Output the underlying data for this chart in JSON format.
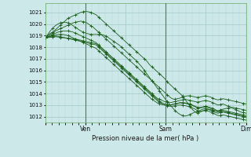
{
  "background_color": "#cce8e8",
  "grid_color_major": "#9ac0c0",
  "grid_color_minor": "#b8d8d8",
  "line_color": "#1a5e1a",
  "marker_color": "#1a5e1a",
  "ylabel_ticks": [
    1012,
    1013,
    1014,
    1015,
    1016,
    1017,
    1018,
    1019,
    1020,
    1021
  ],
  "ylim": [
    1011.5,
    1021.8
  ],
  "xlabel": "Pression niveau de la mer( hPa )",
  "xtick_labels": [
    "",
    "Ven",
    "",
    "Sam",
    "",
    "Dim"
  ],
  "xtick_positions": [
    0,
    48,
    96,
    144,
    192,
    240
  ],
  "total_points": 241,
  "series": [
    [
      1018.8,
      1019.0,
      1019.2,
      1019.3,
      1019.5,
      1019.7,
      1019.9,
      1020.1,
      1020.3,
      1020.5,
      1020.6,
      1020.7,
      1020.8,
      1020.9,
      1021.0,
      1021.05,
      1021.1,
      1021.05,
      1021.0,
      1020.9,
      1020.8,
      1020.6,
      1020.4,
      1020.2,
      1020.0,
      1019.8,
      1019.6,
      1019.4,
      1019.2,
      1019.0,
      1018.8,
      1018.6,
      1018.4,
      1018.2,
      1018.0,
      1017.8,
      1017.6,
      1017.4,
      1017.2,
      1017.0,
      1016.8,
      1016.5,
      1016.3,
      1016.1,
      1015.9,
      1015.7,
      1015.5,
      1015.3,
      1015.0,
      1014.8,
      1014.6,
      1014.4,
      1014.2,
      1014.0,
      1013.8,
      1013.5,
      1013.2,
      1012.9,
      1012.6,
      1012.4,
      1012.3,
      1012.4,
      1012.5,
      1012.6,
      1012.65,
      1012.6,
      1012.55,
      1012.5,
      1012.5,
      1012.6,
      1012.65,
      1012.7,
      1012.75,
      1012.8,
      1012.8,
      1012.75,
      1012.7,
      1012.65,
      1012.6,
      1012.55
    ],
    [
      1018.8,
      1019.0,
      1019.1,
      1019.2,
      1019.4,
      1019.5,
      1019.6,
      1019.7,
      1019.8,
      1019.9,
      1020.0,
      1020.1,
      1020.15,
      1020.2,
      1020.25,
      1020.2,
      1020.15,
      1020.0,
      1019.85,
      1019.7,
      1019.5,
      1019.3,
      1019.1,
      1018.9,
      1018.7,
      1018.5,
      1018.3,
      1018.1,
      1017.9,
      1017.7,
      1017.5,
      1017.3,
      1017.1,
      1016.9,
      1016.7,
      1016.5,
      1016.3,
      1016.1,
      1015.9,
      1015.7,
      1015.5,
      1015.3,
      1015.1,
      1014.9,
      1014.7,
      1014.5,
      1014.3,
      1014.1,
      1013.9,
      1013.7,
      1013.55,
      1013.5,
      1013.55,
      1013.6,
      1013.7,
      1013.75,
      1013.8,
      1013.8,
      1013.75,
      1013.7,
      1013.65,
      1013.7,
      1013.75,
      1013.8,
      1013.75,
      1013.7,
      1013.6,
      1013.5,
      1013.45,
      1013.5,
      1013.55,
      1013.5,
      1013.45,
      1013.4,
      1013.35,
      1013.3,
      1013.25,
      1013.2,
      1013.15,
      1013.1
    ],
    [
      1018.8,
      1018.9,
      1019.0,
      1019.1,
      1019.2,
      1019.3,
      1019.35,
      1019.4,
      1019.4,
      1019.4,
      1019.35,
      1019.3,
      1019.2,
      1019.1,
      1019.0,
      1018.9,
      1018.8,
      1018.7,
      1018.6,
      1018.5,
      1018.4,
      1018.2,
      1018.0,
      1017.8,
      1017.6,
      1017.4,
      1017.2,
      1017.0,
      1016.8,
      1016.6,
      1016.4,
      1016.2,
      1016.0,
      1015.8,
      1015.6,
      1015.4,
      1015.2,
      1015.0,
      1014.8,
      1014.6,
      1014.4,
      1014.2,
      1014.0,
      1013.8,
      1013.6,
      1013.5,
      1013.4,
      1013.3,
      1013.25,
      1013.2,
      1013.25,
      1013.3,
      1013.35,
      1013.4,
      1013.45,
      1013.5,
      1013.45,
      1013.4,
      1013.35,
      1013.3,
      1013.25,
      1013.3,
      1013.35,
      1013.4,
      1013.35,
      1013.3,
      1013.2,
      1013.1,
      1013.0,
      1013.05,
      1013.1,
      1013.0,
      1012.9,
      1012.8,
      1012.7,
      1012.6,
      1012.5,
      1012.4,
      1012.35,
      1012.3
    ],
    [
      1018.8,
      1018.9,
      1018.95,
      1019.0,
      1019.05,
      1019.1,
      1019.1,
      1019.1,
      1019.05,
      1019.0,
      1018.9,
      1018.8,
      1018.7,
      1018.6,
      1018.5,
      1018.4,
      1018.3,
      1018.2,
      1018.1,
      1018.0,
      1017.9,
      1017.7,
      1017.5,
      1017.3,
      1017.1,
      1016.9,
      1016.7,
      1016.5,
      1016.3,
      1016.1,
      1015.9,
      1015.7,
      1015.5,
      1015.3,
      1015.1,
      1014.9,
      1014.7,
      1014.5,
      1014.3,
      1014.1,
      1013.9,
      1013.7,
      1013.5,
      1013.35,
      1013.2,
      1013.1,
      1013.05,
      1013.0,
      1013.0,
      1013.0,
      1013.05,
      1013.1,
      1013.15,
      1013.2,
      1013.2,
      1013.2,
      1013.15,
      1013.1,
      1013.0,
      1012.9,
      1012.8,
      1012.8,
      1012.85,
      1012.9,
      1012.85,
      1012.8,
      1012.7,
      1012.6,
      1012.5,
      1012.5,
      1012.55,
      1012.5,
      1012.45,
      1012.4,
      1012.35,
      1012.3,
      1012.25,
      1012.2,
      1012.15,
      1012.1
    ],
    [
      1018.8,
      1018.85,
      1018.9,
      1018.92,
      1018.95,
      1018.95,
      1018.9,
      1018.85,
      1018.8,
      1018.75,
      1018.7,
      1018.65,
      1018.6,
      1018.55,
      1018.5,
      1018.45,
      1018.4,
      1018.35,
      1018.3,
      1018.25,
      1018.2,
      1018.0,
      1017.8,
      1017.6,
      1017.4,
      1017.2,
      1017.0,
      1016.8,
      1016.6,
      1016.4,
      1016.2,
      1016.0,
      1015.8,
      1015.6,
      1015.4,
      1015.2,
      1015.0,
      1014.8,
      1014.6,
      1014.4,
      1014.2,
      1014.0,
      1013.8,
      1013.6,
      1013.4,
      1013.25,
      1013.1,
      1013.0,
      1012.95,
      1012.9,
      1012.9,
      1012.95,
      1013.0,
      1013.0,
      1013.0,
      1012.95,
      1012.9,
      1012.85,
      1012.75,
      1012.65,
      1012.5,
      1012.45,
      1012.5,
      1012.55,
      1012.5,
      1012.4,
      1012.3,
      1012.2,
      1012.1,
      1012.1,
      1012.15,
      1012.1,
      1012.05,
      1012.0,
      1011.95,
      1011.9,
      1011.85,
      1011.8,
      1011.75,
      1011.7
    ],
    [
      1018.8,
      1018.82,
      1018.85,
      1018.88,
      1018.9,
      1018.88,
      1018.85,
      1018.82,
      1018.8,
      1018.77,
      1018.75,
      1018.72,
      1018.7,
      1018.65,
      1018.6,
      1018.55,
      1018.5,
      1018.45,
      1018.4,
      1018.35,
      1018.3,
      1018.1,
      1017.9,
      1017.7,
      1017.5,
      1017.3,
      1017.1,
      1016.9,
      1016.7,
      1016.5,
      1016.3,
      1016.1,
      1015.9,
      1015.7,
      1015.5,
      1015.3,
      1015.1,
      1014.9,
      1014.7,
      1014.5,
      1014.3,
      1014.1,
      1013.9,
      1013.7,
      1013.5,
      1013.35,
      1013.2,
      1013.1,
      1013.05,
      1013.0,
      1013.05,
      1013.1,
      1013.15,
      1013.2,
      1013.2,
      1013.15,
      1013.1,
      1013.05,
      1012.95,
      1012.85,
      1012.75,
      1012.75,
      1012.8,
      1012.85,
      1012.8,
      1012.7,
      1012.6,
      1012.5,
      1012.4,
      1012.4,
      1012.45,
      1012.4,
      1012.35,
      1012.3,
      1012.25,
      1012.2,
      1012.15,
      1012.1,
      1012.05,
      1012.0
    ],
    [
      1018.8,
      1019.1,
      1019.4,
      1019.65,
      1019.85,
      1020.0,
      1020.1,
      1020.15,
      1020.15,
      1020.1,
      1020.0,
      1019.85,
      1019.7,
      1019.55,
      1019.4,
      1019.3,
      1019.2,
      1019.15,
      1019.1,
      1019.1,
      1019.1,
      1019.1,
      1019.1,
      1019.05,
      1018.95,
      1018.8,
      1018.65,
      1018.5,
      1018.35,
      1018.2,
      1018.0,
      1017.8,
      1017.6,
      1017.4,
      1017.2,
      1017.0,
      1016.8,
      1016.55,
      1016.3,
      1016.0,
      1015.7,
      1015.4,
      1015.1,
      1014.8,
      1014.5,
      1014.2,
      1013.9,
      1013.6,
      1013.3,
      1013.05,
      1012.8,
      1012.55,
      1012.35,
      1012.2,
      1012.1,
      1012.05,
      1012.1,
      1012.2,
      1012.3,
      1012.4,
      1012.45,
      1012.55,
      1012.65,
      1012.7,
      1012.65,
      1012.55,
      1012.45,
      1012.35,
      1012.3,
      1012.35,
      1012.4,
      1012.35,
      1012.3,
      1012.25,
      1012.2,
      1012.15,
      1012.1,
      1012.05,
      1012.0,
      1011.95
    ]
  ]
}
